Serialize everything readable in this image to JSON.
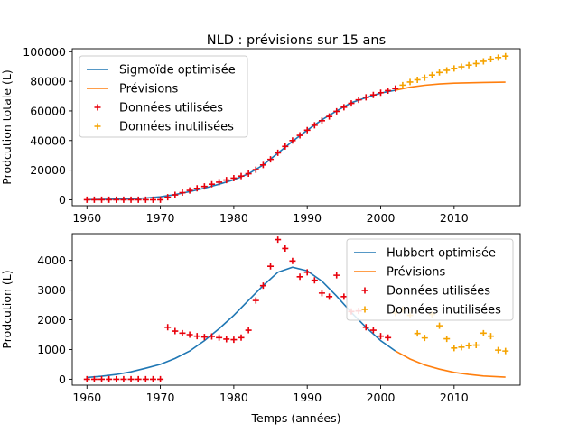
{
  "figure_title": "NLD : prévisions sur 15 ans",
  "colors": {
    "fit": "#1f77b4",
    "forecast": "#ff7f0e",
    "used": "#e8000b",
    "unused": "#f5a300"
  },
  "chart_data": [
    {
      "type": "line",
      "title": "NLD : prévisions sur 15 ans",
      "xlabel": "",
      "ylabel": "Prodcution totale (L)",
      "xlim": [
        1958,
        2019
      ],
      "ylim": [
        -4000,
        102000
      ],
      "xticks": [
        1960,
        1970,
        1980,
        1990,
        2000,
        2010
      ],
      "yticks": [
        0,
        20000,
        40000,
        60000,
        80000,
        100000
      ],
      "legend_position": "top-left",
      "series": [
        {
          "name": "Sigmoïde optimisée",
          "kind": "line",
          "color": "#1f77b4",
          "x": [
            1960,
            1962,
            1964,
            1966,
            1968,
            1970,
            1972,
            1974,
            1976,
            1978,
            1980,
            1982,
            1984,
            1986,
            1988,
            1990,
            1992,
            1994,
            1996,
            1998,
            2000,
            2002
          ],
          "y": [
            100,
            200,
            400,
            700,
            1200,
            2000,
            3500,
            5500,
            7800,
            10500,
            13500,
            17500,
            23500,
            31500,
            39500,
            47000,
            54000,
            60000,
            65500,
            69000,
            72000,
            74000
          ]
        },
        {
          "name": "Prévisions",
          "kind": "line",
          "color": "#ff7f0e",
          "x": [
            2002,
            2004,
            2006,
            2008,
            2010,
            2012,
            2014,
            2017
          ],
          "y": [
            74000,
            76000,
            77300,
            78200,
            78700,
            79000,
            79200,
            79400
          ]
        },
        {
          "name": "Données utilisées",
          "kind": "scatter",
          "color": "#e8000b",
          "x": [
            1960,
            1961,
            1962,
            1963,
            1964,
            1965,
            1966,
            1967,
            1968,
            1969,
            1970,
            1971,
            1972,
            1973,
            1974,
            1975,
            1976,
            1977,
            1978,
            1979,
            1980,
            1981,
            1982,
            1983,
            1984,
            1985,
            1986,
            1987,
            1988,
            1989,
            1990,
            1991,
            1992,
            1993,
            1994,
            1995,
            1996,
            1997,
            1998,
            1999,
            2000,
            2001,
            2002
          ],
          "y": [
            0,
            0,
            0,
            0,
            0,
            0,
            0,
            0,
            0,
            0,
            0,
            1700,
            3300,
            4800,
            6300,
            7700,
            9000,
            10500,
            11900,
            13300,
            14600,
            16000,
            17600,
            20300,
            23500,
            27300,
            31700,
            36000,
            40000,
            43500,
            47000,
            50300,
            53400,
            56200,
            59700,
            62500,
            65100,
            67500,
            69200,
            70800,
            72300,
            73700,
            75100
          ]
        },
        {
          "name": "Données inutilisées",
          "kind": "scatter",
          "color": "#f5a300",
          "x": [
            2003,
            2004,
            2005,
            2006,
            2007,
            2008,
            2009,
            2010,
            2011,
            2012,
            2013,
            2014,
            2015,
            2016,
            2017
          ],
          "y": [
            77400,
            79500,
            81000,
            82400,
            84200,
            86000,
            87400,
            88700,
            89800,
            90900,
            92000,
            93500,
            95000,
            96000,
            97000
          ]
        }
      ]
    },
    {
      "type": "line",
      "title": "",
      "xlabel": "Temps (années)",
      "ylabel": "Prodcution (L)",
      "xlim": [
        1958,
        2019
      ],
      "ylim": [
        -200,
        4900
      ],
      "xticks": [
        1960,
        1970,
        1980,
        1990,
        2000,
        2010
      ],
      "yticks": [
        0,
        1000,
        2000,
        3000,
        4000
      ],
      "legend_position": "top-right",
      "series": [
        {
          "name": "Hubbert optimisée",
          "kind": "line",
          "color": "#1f77b4",
          "x": [
            1960,
            1962,
            1964,
            1966,
            1968,
            1970,
            1972,
            1974,
            1976,
            1978,
            1980,
            1982,
            1984,
            1986,
            1988,
            1990,
            1992,
            1994,
            1996,
            1998,
            2000,
            2002
          ],
          "y": [
            60,
            100,
            160,
            250,
            370,
            500,
            700,
            950,
            1300,
            1700,
            2150,
            2650,
            3150,
            3600,
            3770,
            3650,
            3300,
            2800,
            2250,
            1750,
            1300,
            950
          ]
        },
        {
          "name": "Prévisions",
          "kind": "line",
          "color": "#ff7f0e",
          "x": [
            2002,
            2004,
            2006,
            2008,
            2010,
            2012,
            2014,
            2017
          ],
          "y": [
            950,
            680,
            480,
            340,
            230,
            160,
            110,
            70
          ]
        },
        {
          "name": "Données utilisées",
          "kind": "scatter",
          "color": "#e8000b",
          "x": [
            1960,
            1961,
            1962,
            1963,
            1964,
            1965,
            1966,
            1967,
            1968,
            1969,
            1970,
            1971,
            1972,
            1973,
            1974,
            1975,
            1976,
            1977,
            1978,
            1979,
            1980,
            1981,
            1982,
            1983,
            1984,
            1985,
            1986,
            1987,
            1988,
            1989,
            1990,
            1991,
            1992,
            1993,
            1994,
            1995,
            1996,
            1997,
            1998,
            1999,
            2000,
            2001
          ],
          "y": [
            0,
            0,
            0,
            0,
            0,
            0,
            0,
            0,
            0,
            0,
            0,
            1750,
            1620,
            1550,
            1500,
            1450,
            1420,
            1440,
            1400,
            1350,
            1330,
            1400,
            1650,
            2650,
            3150,
            3800,
            4700,
            4400,
            3980,
            3450,
            3600,
            3330,
            2900,
            2780,
            3500,
            2780,
            2280,
            2300,
            1750,
            1650,
            1450,
            1400
          ]
        },
        {
          "name": "Données inutilisées",
          "kind": "scatter",
          "color": "#f5a300",
          "x": [
            2002,
            2003,
            2004,
            2005,
            2006,
            2007,
            2008,
            2009,
            2010,
            2011,
            2012,
            2013,
            2014,
            2015,
            2016,
            2017
          ],
          "y": [
            2230,
            2350,
            2150,
            1540,
            1390,
            2180,
            1800,
            1360,
            1050,
            1080,
            1130,
            1150,
            1550,
            1450,
            980,
            950
          ]
        }
      ]
    }
  ]
}
